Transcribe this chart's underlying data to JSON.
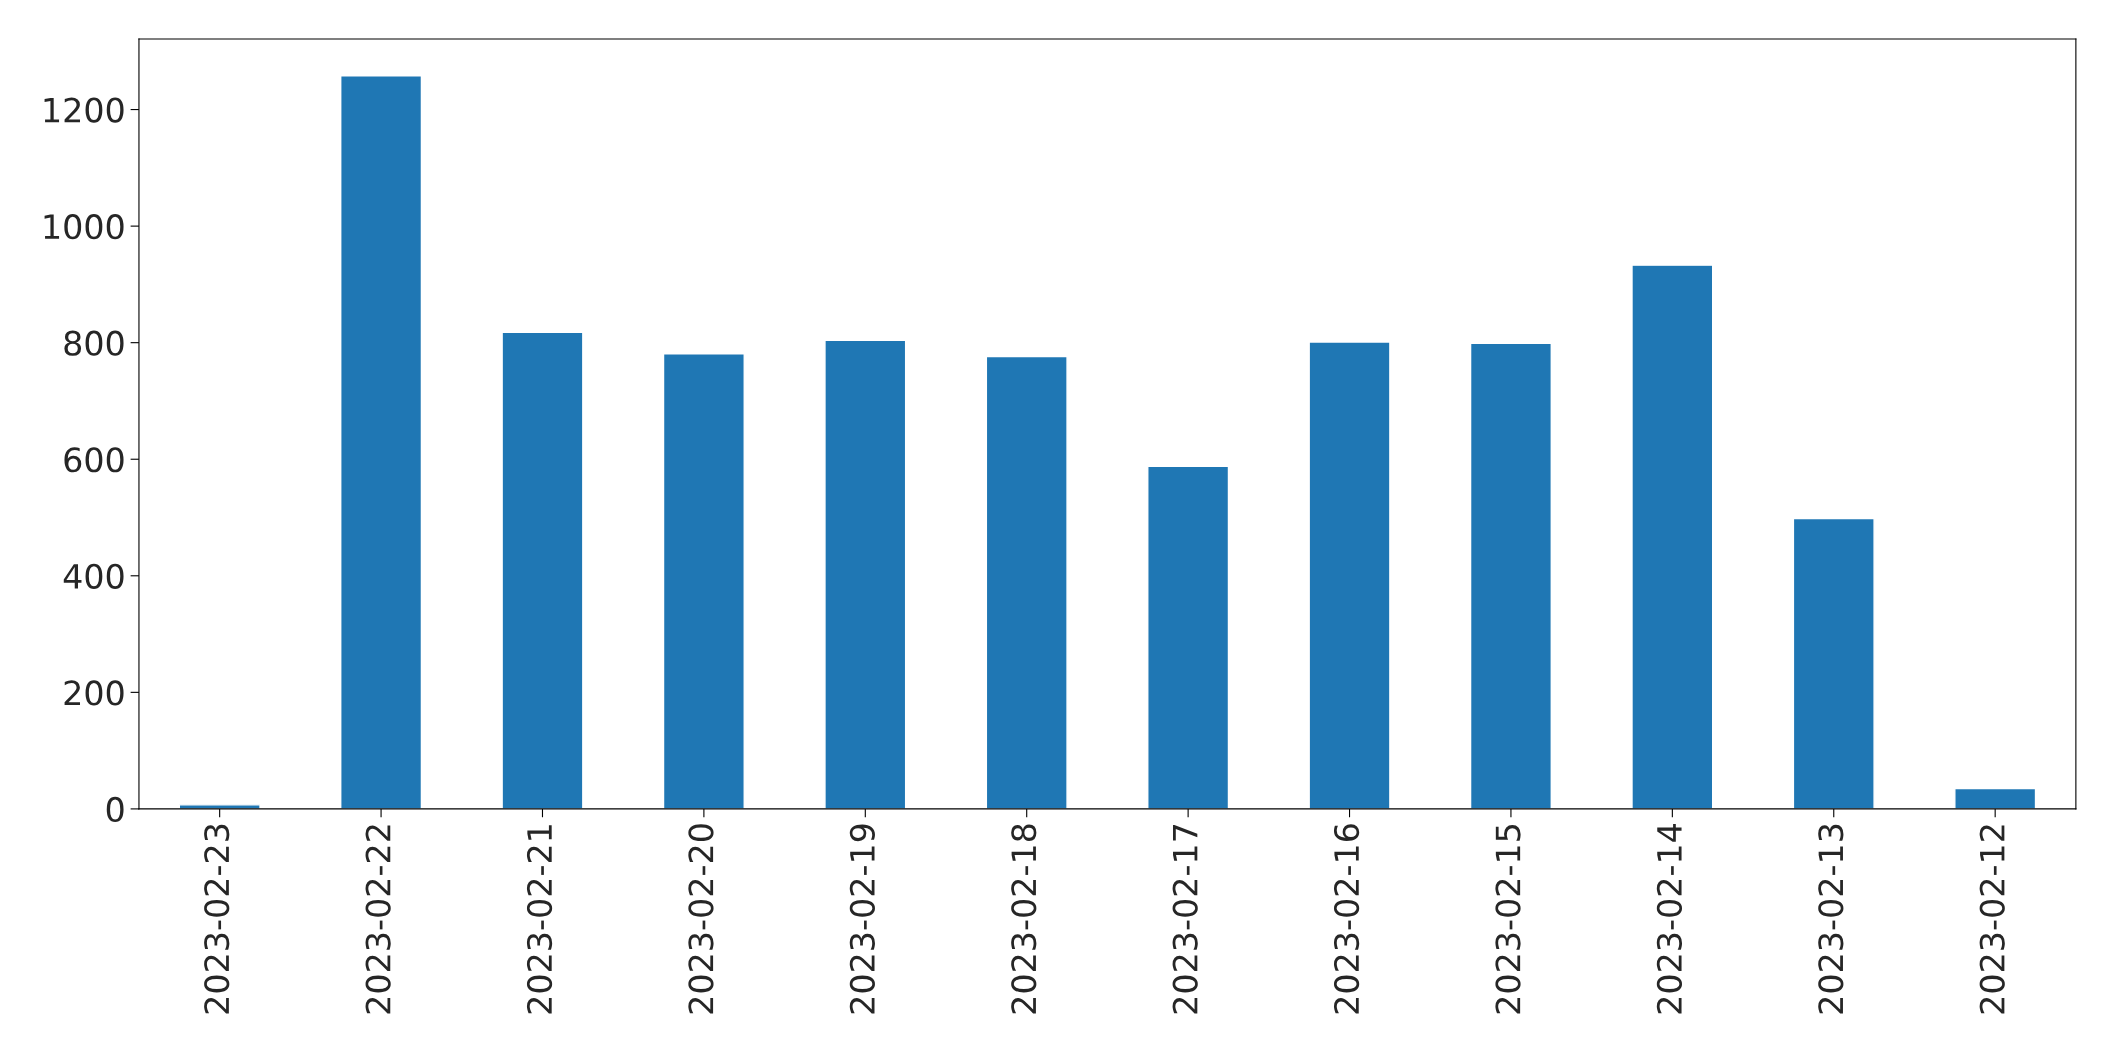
{
  "chart_data": {
    "type": "bar",
    "categories": [
      "2023-02-23",
      "2023-02-22",
      "2023-02-21",
      "2023-02-20",
      "2023-02-19",
      "2023-02-18",
      "2023-02-17",
      "2023-02-16",
      "2023-02-15",
      "2023-02-14",
      "2023-02-13",
      "2023-02-12"
    ],
    "values": [
      7,
      1258,
      818,
      781,
      804,
      776,
      588,
      801,
      799,
      933,
      498,
      35
    ],
    "color": "#1f77b4",
    "ylim": [
      0,
      1321
    ],
    "yticks": [
      0,
      200,
      400,
      600,
      800,
      1000,
      1200
    ],
    "grid": false,
    "legend": false
  }
}
